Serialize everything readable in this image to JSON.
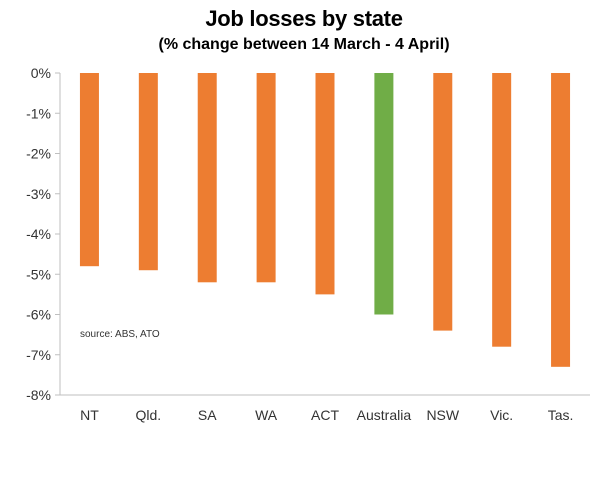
{
  "chart_data": {
    "type": "bar",
    "title": "Job losses by state",
    "subtitle": "(%  change between 14 March - 4 April)",
    "categories": [
      "NT",
      "Qld.",
      "SA",
      "WA",
      "ACT",
      "Australia",
      "NSW",
      "Vic.",
      "Tas."
    ],
    "values": [
      -4.8,
      -4.9,
      -5.2,
      -5.2,
      -5.5,
      -6.0,
      -6.4,
      -6.8,
      -7.3
    ],
    "highlight_category": "Australia",
    "colors": {
      "default": "#ED7D31",
      "highlight": "#70AD47"
    },
    "ylim": [
      -8,
      0
    ],
    "y_ticks": [
      0,
      -1,
      -2,
      -3,
      -4,
      -5,
      -6,
      -7,
      -8
    ],
    "y_tick_labels": [
      "0%",
      "-1%",
      "-2%",
      "-3%",
      "-4%",
      "-5%",
      "-6%",
      "-7%",
      "-8%"
    ],
    "grid": false,
    "xlabel": "",
    "ylabel": "",
    "annotation": "source:  ABS, ATO"
  }
}
